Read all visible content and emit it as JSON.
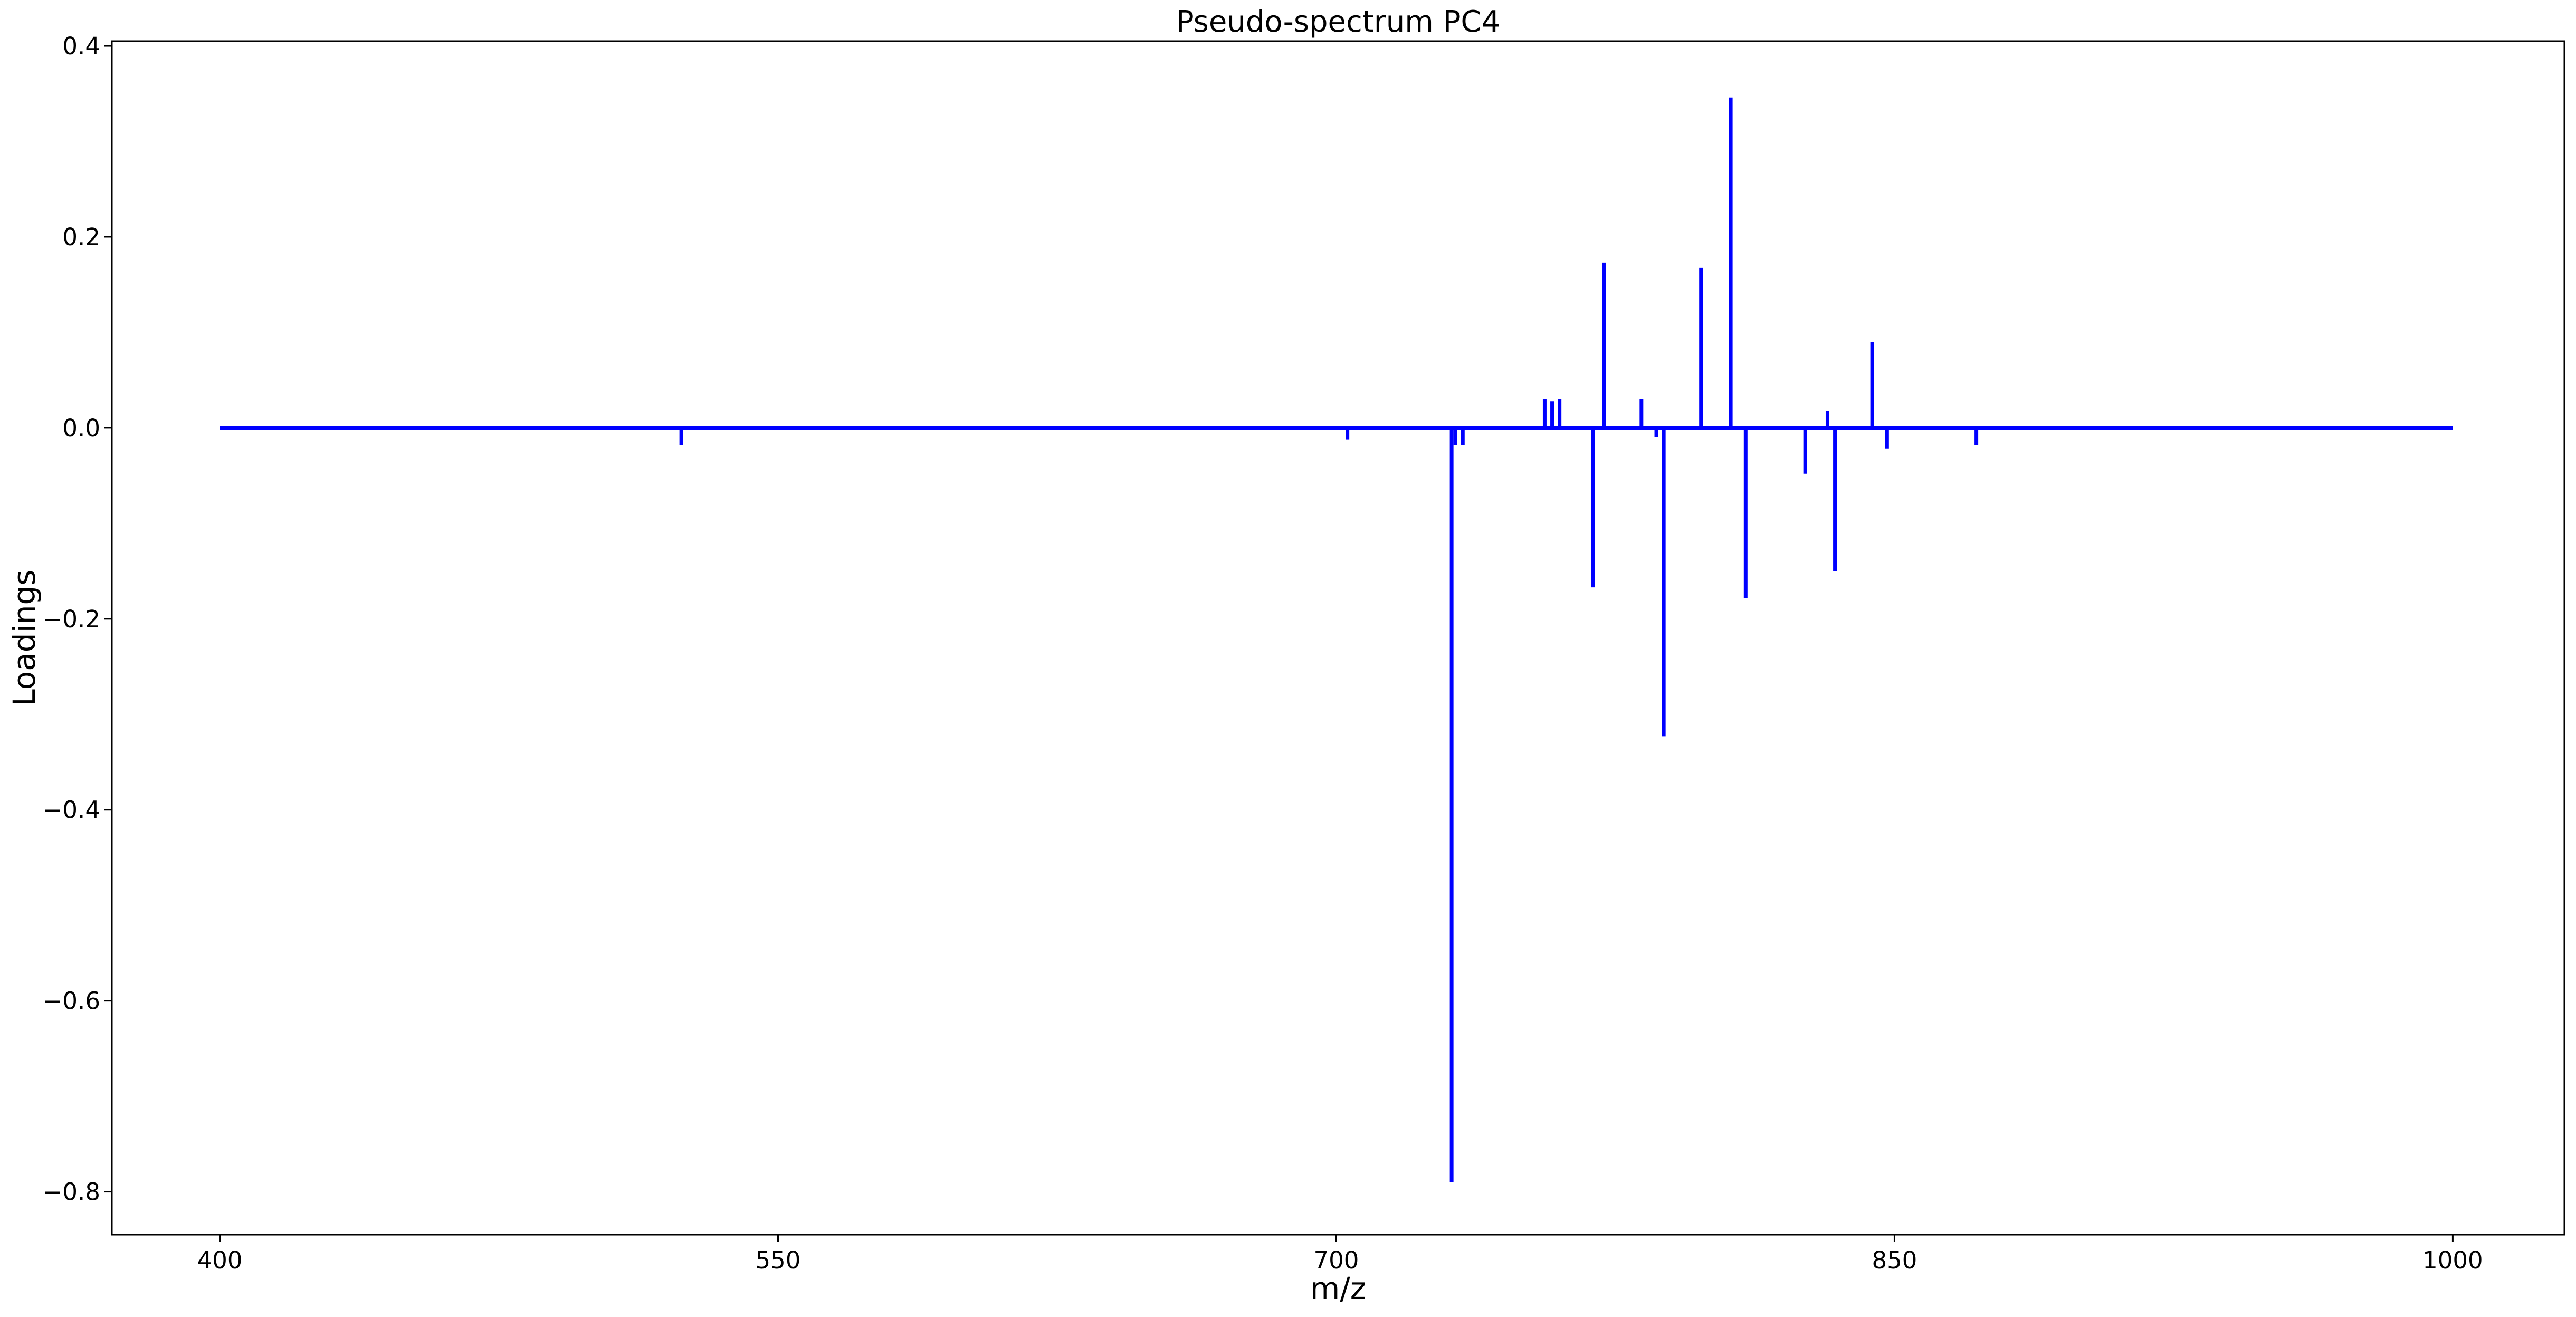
{
  "chart_data": {
    "type": "line",
    "title": "Pseudo-spectrum PC4",
    "xlabel": "m/z",
    "ylabel": "Loadings",
    "xlim": [
      371,
      1030
    ],
    "ylim": [
      -0.845,
      0.405
    ],
    "xticks": [
      400,
      550,
      700,
      850,
      1000
    ],
    "xtick_labels": [
      "400",
      "550",
      "700",
      "850",
      "1000"
    ],
    "yticks": [
      0.4,
      0.2,
      0.0,
      -0.2,
      -0.4,
      -0.6,
      -0.8
    ],
    "ytick_labels": [
      "0.4",
      "0.2",
      "0.0",
      "−0.2",
      "−0.4",
      "−0.6",
      "−0.8"
    ],
    "grid": false,
    "legend": "none",
    "series": [
      {
        "color": "#0000ff",
        "baseline_range": [
          400,
          1000
        ],
        "peaks": [
          {
            "mz": 524,
            "loading": -0.018
          },
          {
            "mz": 703,
            "loading": -0.012
          },
          {
            "mz": 731,
            "loading": -0.79
          },
          {
            "mz": 732,
            "loading": -0.018
          },
          {
            "mz": 734,
            "loading": -0.018
          },
          {
            "mz": 756,
            "loading": 0.03
          },
          {
            "mz": 758,
            "loading": 0.028
          },
          {
            "mz": 760,
            "loading": 0.03
          },
          {
            "mz": 769,
            "loading": -0.167
          },
          {
            "mz": 772,
            "loading": 0.173
          },
          {
            "mz": 782,
            "loading": 0.03
          },
          {
            "mz": 786,
            "loading": -0.01
          },
          {
            "mz": 788,
            "loading": -0.323
          },
          {
            "mz": 798,
            "loading": 0.168
          },
          {
            "mz": 806,
            "loading": 0.346
          },
          {
            "mz": 810,
            "loading": -0.178
          },
          {
            "mz": 826,
            "loading": -0.048
          },
          {
            "mz": 832,
            "loading": 0.018
          },
          {
            "mz": 834,
            "loading": -0.15
          },
          {
            "mz": 844,
            "loading": 0.09
          },
          {
            "mz": 848,
            "loading": -0.022
          },
          {
            "mz": 872,
            "loading": -0.018
          }
        ]
      }
    ]
  }
}
